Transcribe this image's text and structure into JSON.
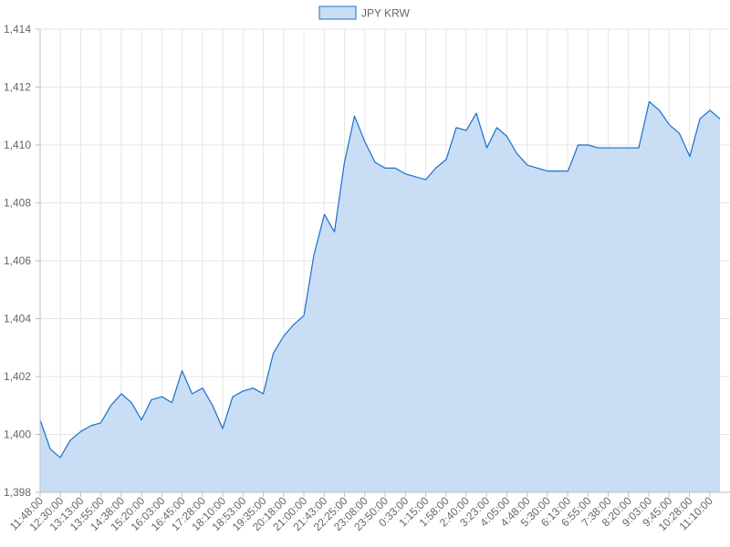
{
  "chart_data": {
    "type": "area",
    "title": "",
    "xlabel": "",
    "ylabel": "",
    "legend": {
      "position": "top-center"
    },
    "grid": true,
    "ylim": [
      1398,
      1414
    ],
    "yticks": [
      "1,398",
      "1,400",
      "1,402",
      "1,404",
      "1,406",
      "1,408",
      "1,410",
      "1,412",
      "1,414"
    ],
    "xticks": [
      "11:48:00",
      "12:30:00",
      "13:13:00",
      "13:55:00",
      "14:38:00",
      "15:20:00",
      "16:03:00",
      "16:45:00",
      "17:28:00",
      "18:10:00",
      "18:53:00",
      "19:35:00",
      "20:18:00",
      "21:00:00",
      "21:43:00",
      "22:25:00",
      "23:08:00",
      "23:50:00",
      "0:33:00",
      "1:15:00",
      "1:58:00",
      "2:40:00",
      "3:23:00",
      "4:05:00",
      "4:48:00",
      "5:30:00",
      "6:13:00",
      "6:55:00",
      "7:38:00",
      "8:20:00",
      "9:03:00",
      "9:45:00",
      "10:28:00",
      "11:10:00"
    ],
    "colors": {
      "line": "#1a6fd0",
      "fill": "#c9ddf4"
    },
    "series": [
      {
        "name": "JPY KRW",
        "x": [
          "11:48:00",
          "12:09:00",
          "12:30:00",
          "12:51:00",
          "13:13:00",
          "13:34:00",
          "13:55:00",
          "14:16:00",
          "14:38:00",
          "14:59:00",
          "15:20:00",
          "15:41:00",
          "16:03:00",
          "16:24:00",
          "16:45:00",
          "17:06:00",
          "17:28:00",
          "17:49:00",
          "18:10:00",
          "18:31:00",
          "18:53:00",
          "19:14:00",
          "19:35:00",
          "19:56:00",
          "20:18:00",
          "20:39:00",
          "21:00:00",
          "21:21:00",
          "21:43:00",
          "22:04:00",
          "22:25:00",
          "22:46:00",
          "23:08:00",
          "23:29:00",
          "23:50:00",
          "0:11:00",
          "0:33:00",
          "0:54:00",
          "1:15:00",
          "1:36:00",
          "1:58:00",
          "2:19:00",
          "2:40:00",
          "3:01:00",
          "3:23:00",
          "3:44:00",
          "4:05:00",
          "4:26:00",
          "4:48:00",
          "5:09:00",
          "5:30:00",
          "5:51:00",
          "6:13:00",
          "6:34:00",
          "6:55:00",
          "7:16:00",
          "7:38:00",
          "7:59:00",
          "8:20:00",
          "8:41:00",
          "9:03:00",
          "9:24:00",
          "9:45:00",
          "10:06:00",
          "10:28:00",
          "10:49:00",
          "11:10:00",
          "11:31:00"
        ],
        "values": [
          1400.5,
          1399.5,
          1399.2,
          1399.8,
          1400.1,
          1400.3,
          1400.4,
          1401.0,
          1401.4,
          1401.1,
          1400.5,
          1401.2,
          1401.3,
          1401.1,
          1402.2,
          1401.4,
          1401.6,
          1401.0,
          1400.2,
          1401.3,
          1401.5,
          1401.6,
          1401.4,
          1402.8,
          1403.4,
          1403.8,
          1404.1,
          1406.2,
          1407.6,
          1407.0,
          1409.4,
          1411.0,
          1410.1,
          1409.4,
          1409.2,
          1409.2,
          1409.0,
          1408.9,
          1408.8,
          1409.2,
          1409.5,
          1410.6,
          1410.5,
          1411.1,
          1409.9,
          1410.6,
          1410.3,
          1409.7,
          1409.3,
          1409.2,
          1409.1,
          1409.1,
          1409.1,
          1410.0,
          1410.0,
          1409.9,
          1409.9,
          1409.9,
          1409.9,
          1409.9,
          1411.5,
          1411.2,
          1410.7,
          1410.4,
          1409.6,
          1410.9,
          1411.2,
          1410.9
        ]
      }
    ]
  }
}
